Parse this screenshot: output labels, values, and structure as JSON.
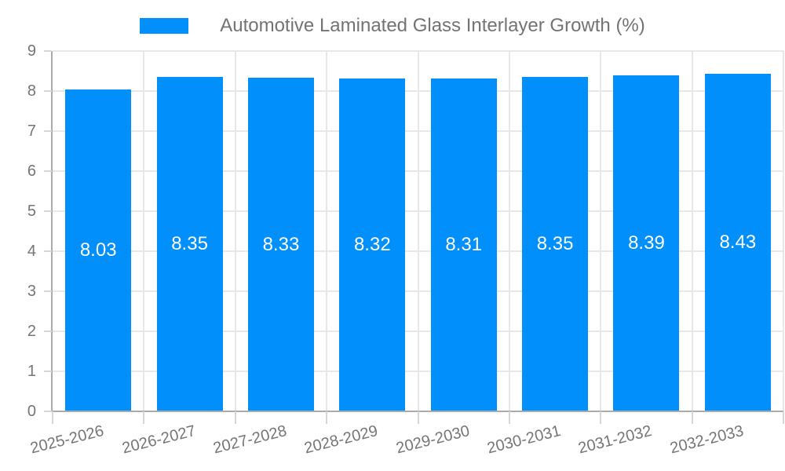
{
  "chart_data": {
    "type": "bar",
    "title": "Automotive Laminated Glass Interlayer Growth (%)",
    "categories": [
      "2025-2026",
      "2026-2027",
      "2027-2028",
      "2028-2029",
      "2029-2030",
      "2030-2031",
      "2031-2032",
      "2032-2033"
    ],
    "values": [
      8.03,
      8.35,
      8.33,
      8.32,
      8.31,
      8.35,
      8.39,
      8.43
    ],
    "bar_labels": [
      "8.03",
      "8.35",
      "8.33",
      "8.32",
      "8.31",
      "8.35",
      "8.39",
      "8.43"
    ],
    "xlabel": "",
    "ylabel": "",
    "ylim": [
      0,
      9
    ],
    "yticks": [
      0,
      1,
      2,
      3,
      4,
      5,
      6,
      7,
      8,
      9
    ],
    "grid": true,
    "legend_position": "top-center",
    "colors": {
      "bar": "#008FFB",
      "bar_label": "#FFFFFF",
      "axis_text": "#757575",
      "legend_text": "#737373",
      "gridline": "#E8E8E8",
      "axis_line": "#ABABAB",
      "tick": "#D6D6D6",
      "background": "#FFFFFF"
    }
  }
}
